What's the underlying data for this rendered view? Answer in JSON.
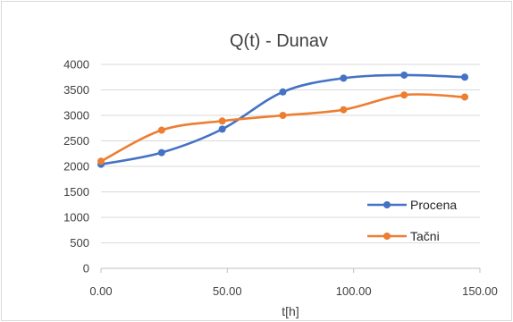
{
  "chart_data": {
    "type": "line",
    "smooth": true,
    "title": "Q(t) - Dunav",
    "xlabel": "t[h]",
    "ylabel": "",
    "xlim": [
      0,
      150
    ],
    "ylim": [
      0,
      4000
    ],
    "xticks": [
      0,
      50,
      100,
      150
    ],
    "xtick_labels": [
      "0.00",
      "50.00",
      "100.00",
      "150.00"
    ],
    "yticks": [
      0,
      500,
      1000,
      1500,
      2000,
      2500,
      3000,
      3500,
      4000
    ],
    "ytick_labels": [
      "0",
      "500",
      "1000",
      "1500",
      "2000",
      "2500",
      "3000",
      "3500",
      "4000"
    ],
    "grid": "horizontal",
    "legend_position": "right",
    "series": [
      {
        "name": "Procena",
        "color": "#4472C4",
        "x": [
          0,
          24,
          48,
          72,
          96,
          120,
          144
        ],
        "y": [
          2040,
          2270,
          2730,
          3460,
          3730,
          3790,
          3750
        ]
      },
      {
        "name": "Tačni",
        "color": "#ED7D31",
        "x": [
          0,
          24,
          48,
          72,
          96,
          120,
          144
        ],
        "y": [
          2100,
          2710,
          2890,
          3000,
          3110,
          3400,
          3360
        ]
      }
    ]
  }
}
